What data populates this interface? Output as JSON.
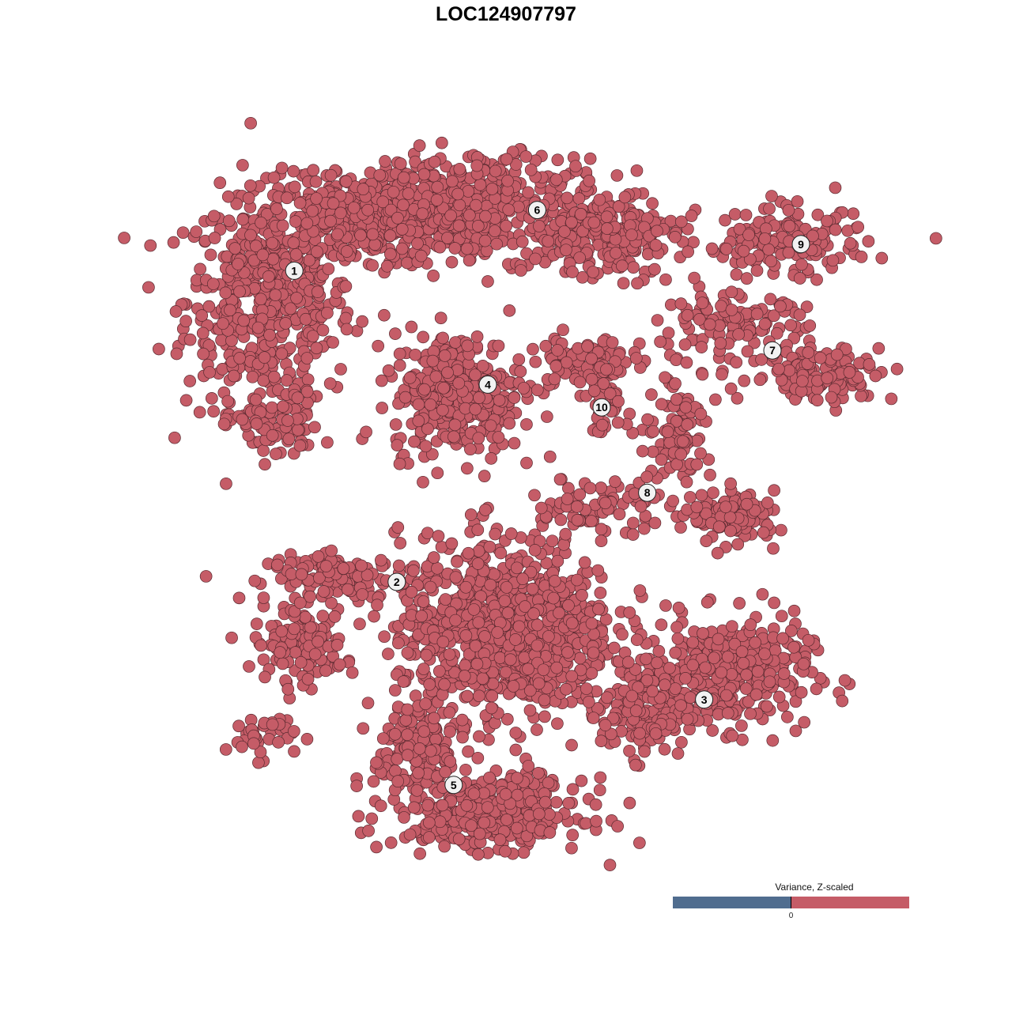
{
  "chart_data": {
    "type": "scatter",
    "title": "LOC124907797",
    "xlabel": "",
    "ylabel": "",
    "xlim": [
      -10,
      10
    ],
    "ylim": [
      -10,
      10
    ],
    "axes_visible": false,
    "grid": false,
    "point_color": "#c55c67",
    "point_edge_color": "#5a2a30",
    "note_values": "all points at positive Z-scaled variance (uniform red)",
    "clusters": [
      {
        "label": "1",
        "center": [
          -6.1,
          6.2
        ],
        "blobs": [
          [
            -6.77,
            5.42,
            1.46,
            1.9,
            520
          ],
          [
            -4.5,
            7.5,
            1.7,
            0.8,
            300
          ],
          [
            -6.6,
            2.1,
            0.8,
            0.6,
            80
          ]
        ]
      },
      {
        "label": "2",
        "center": [
          -3.4,
          -2.0
        ],
        "blobs": [
          [
            -5.95,
            -3.65,
            0.8,
            0.6,
            130
          ],
          [
            -4.9,
            -1.9,
            1.25,
            0.4,
            120
          ],
          [
            -7.0,
            -6.05,
            0.6,
            0.4,
            40
          ]
        ]
      },
      {
        "label": "3",
        "center": [
          4.7,
          -5.1
        ],
        "blobs": [
          [
            5.3,
            -4.4,
            1.45,
            0.95,
            350
          ],
          [
            3.2,
            -5.4,
            0.8,
            0.8,
            150
          ]
        ]
      },
      {
        "label": "4",
        "center": [
          -1.0,
          3.2
        ],
        "blobs": [
          [
            -1.8,
            3.0,
            1.15,
            1.05,
            350
          ]
        ]
      },
      {
        "label": "5",
        "center": [
          -1.9,
          -7.35
        ],
        "blobs": [
          [
            -0.5,
            -3.3,
            1.9,
            1.65,
            900
          ],
          [
            -0.95,
            -8.1,
            1.65,
            0.6,
            350
          ],
          [
            -2.8,
            -6.45,
            0.8,
            1.05,
            150
          ]
        ]
      },
      {
        "label": "6",
        "center": [
          0.3,
          7.8
        ],
        "blobs": [
          [
            -1.35,
            7.9,
            2.3,
            0.9,
            500
          ],
          [
            2.2,
            7.1,
            1.25,
            0.7,
            200
          ]
        ]
      },
      {
        "label": "7",
        "center": [
          6.5,
          4.1
        ],
        "blobs": [
          [
            5.5,
            4.8,
            1.25,
            0.5,
            120
          ],
          [
            7.8,
            3.5,
            1.25,
            0.5,
            130
          ]
        ]
      },
      {
        "label": "8",
        "center": [
          3.2,
          0.35
        ],
        "blobs": [
          [
            4.05,
            2.1,
            0.6,
            1.05,
            100
          ],
          [
            5.5,
            -0.3,
            0.75,
            0.45,
            120
          ],
          [
            1.95,
            0.0,
            1.25,
            0.5,
            80
          ]
        ]
      },
      {
        "label": "9",
        "center": [
          7.25,
          6.9
        ],
        "blobs": [
          [
            6.8,
            6.9,
            1.5,
            0.6,
            150
          ]
        ]
      },
      {
        "label": "10",
        "center": [
          2.0,
          2.6
        ],
        "blobs": [
          [
            1.55,
            3.75,
            1.0,
            0.5,
            100
          ],
          [
            2.1,
            2.7,
            0.4,
            0.5,
            40
          ]
        ]
      }
    ],
    "legend": {
      "title": "Variance, Z-scaled",
      "tick_label": "0",
      "low_color": "#506d8f",
      "high_color": "#c55c67",
      "placement": "bottom-right"
    }
  }
}
